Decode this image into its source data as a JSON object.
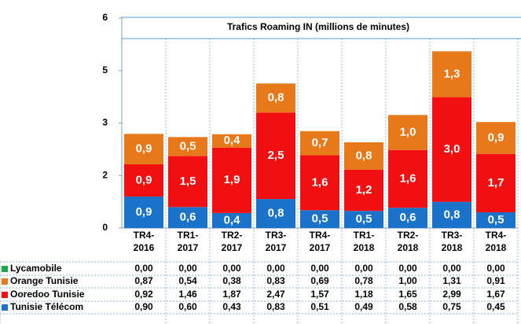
{
  "chart_data": {
    "type": "stacked_bar",
    "title": "Trafics  Roaming IN  (millions de minutes)",
    "categories": [
      [
        "TR4-",
        "2016"
      ],
      [
        "TR1-",
        "2017"
      ],
      [
        "TR2-",
        "2017"
      ],
      [
        "TR3-",
        "2017"
      ],
      [
        "TR4-",
        "2017"
      ],
      [
        "TR1-",
        "2018"
      ],
      [
        "TR2-",
        "2018"
      ],
      [
        "TR3-",
        "2018"
      ],
      [
        "TR4-",
        "2018"
      ]
    ],
    "ylim": [
      0,
      6
    ],
    "yticks": [
      0,
      {
        "value": 1.5,
        "label": "2"
      },
      3,
      {
        "value": 4.5,
        "label": "5"
      },
      6
    ],
    "series": [
      {
        "name": "Tunisie Télécom",
        "color": "#1a73c9",
        "values": [
          0.9,
          0.6,
          0.43,
          0.83,
          0.51,
          0.49,
          0.58,
          0.75,
          0.45
        ],
        "value_labels": [
          "0,9",
          "0,6",
          "0,4",
          "0,8",
          "0,5",
          "0,5",
          "0,6",
          "0,8",
          "0,5"
        ],
        "table_labels": [
          "0,90",
          "0,60",
          "0,43",
          "0,83",
          "0,51",
          "0,49",
          "0,58",
          "0,75",
          "0,45"
        ]
      },
      {
        "name": "Ooredoo Tunisie",
        "color": "#f20f0f",
        "values": [
          0.92,
          1.46,
          1.87,
          2.47,
          1.57,
          1.18,
          1.65,
          2.99,
          1.67
        ],
        "value_labels": [
          "0,9",
          "1,5",
          "1,9",
          "2,5",
          "1,6",
          "1,2",
          "1,6",
          "3,0",
          "1,7"
        ],
        "table_labels": [
          "0,92",
          "1,46",
          "1,87",
          "2,47",
          "1,57",
          "1,18",
          "1,65",
          "2,99",
          "1,67"
        ]
      },
      {
        "name": "Orange Tunisie",
        "color": "#e8791a",
        "values": [
          0.87,
          0.54,
          0.38,
          0.83,
          0.69,
          0.78,
          1.0,
          1.31,
          0.91
        ],
        "value_labels": [
          "0,9",
          "0,5",
          "0,4",
          "0,8",
          "0,7",
          "0,8",
          "1,0",
          "1,3",
          "0,9"
        ],
        "table_labels": [
          "0,87",
          "0,54",
          "0,38",
          "0,83",
          "0,69",
          "0,78",
          "1,00",
          "1,31",
          "0,91"
        ]
      },
      {
        "name": "Lycamobile",
        "color": "#1ea64c",
        "values": [
          0.0,
          0.0,
          0.0,
          0.0,
          0.0,
          0.0,
          0.0,
          0.0,
          0.0
        ],
        "table_labels": [
          "0,00",
          "0,00",
          "0,00",
          "0,00",
          "0,00",
          "0,00",
          "0,00",
          "0,00",
          "0,00"
        ]
      }
    ]
  }
}
